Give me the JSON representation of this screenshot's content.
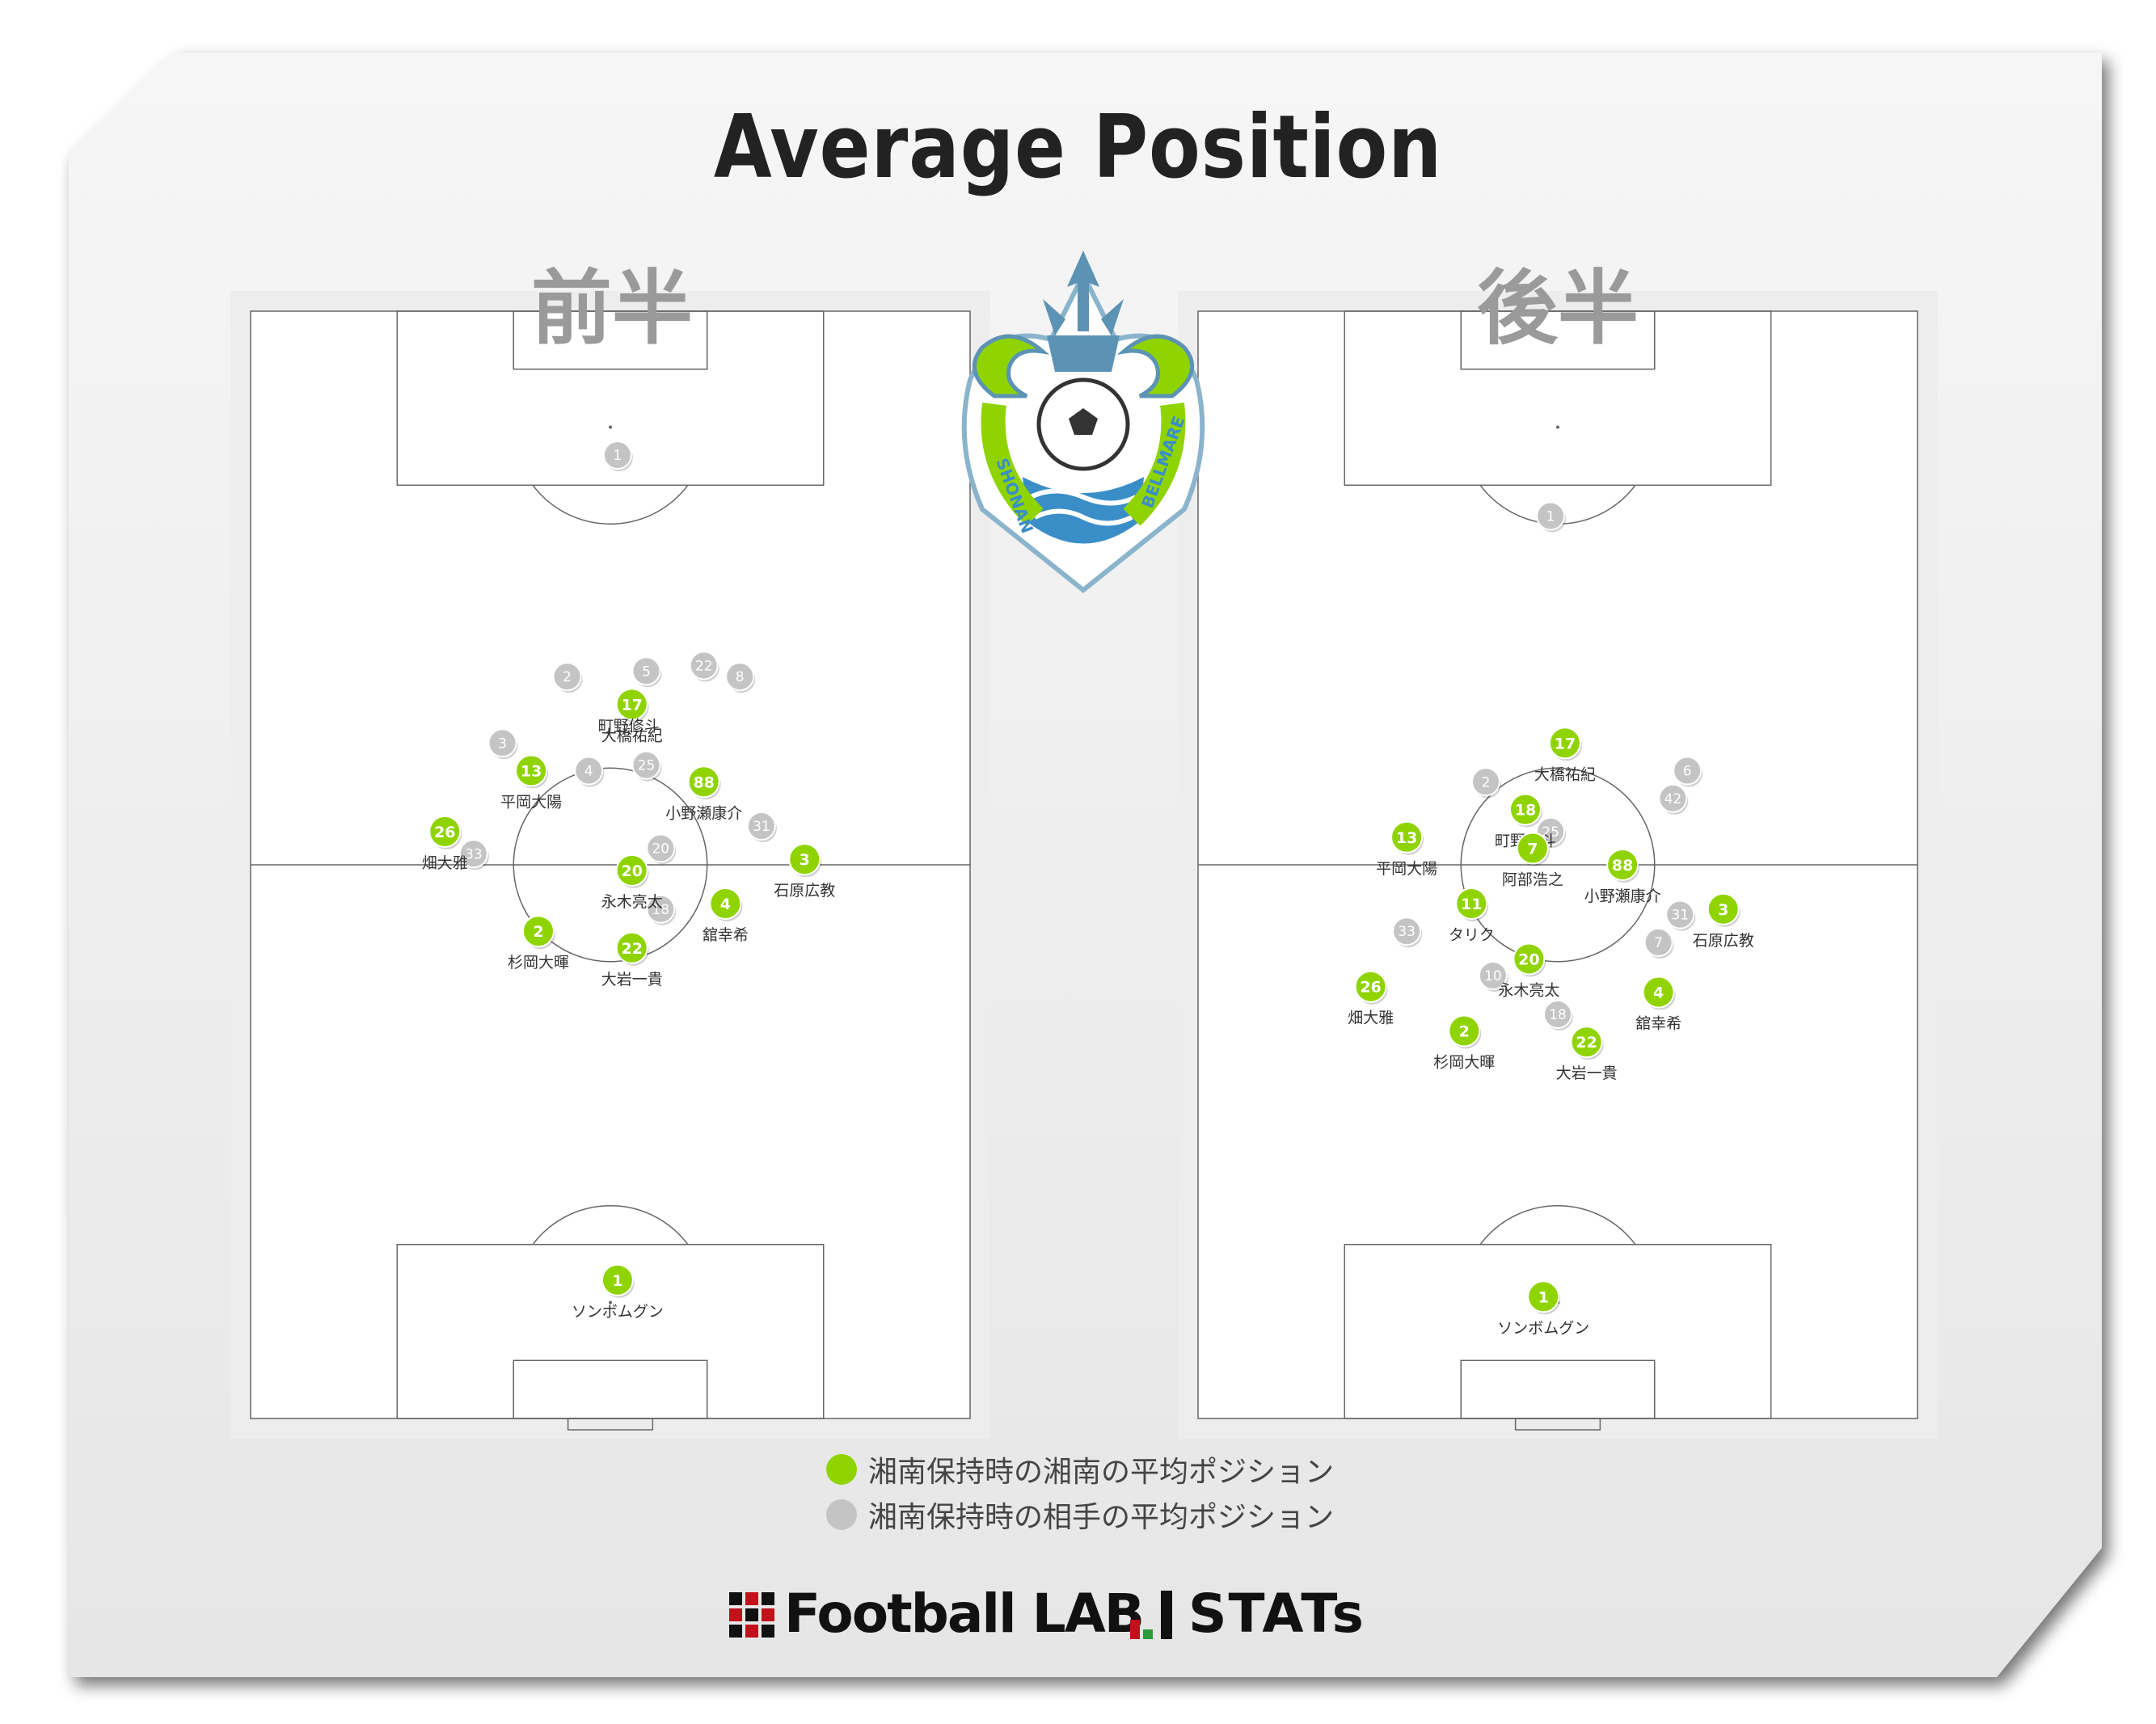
{
  "title": "Average Position",
  "halves": [
    {
      "label": "前半"
    },
    {
      "label": "後半"
    }
  ],
  "crest": {
    "text": "SHONAN BELLMARE"
  },
  "legend": [
    {
      "label": "湘南保持時の湘南の平均ポジション",
      "color": "#8fd400"
    },
    {
      "label": "湘南保持時の相手の平均ポジション",
      "color": "#c4c4c4"
    }
  ],
  "logos": {
    "footballlab": "Football LAB",
    "stats": "STATs"
  },
  "colors": {
    "home": "#8fd400",
    "away": "#c4c4c4",
    "line": "#666666",
    "pitch": "#ffffff"
  },
  "chart_data": [
    {
      "type": "scatter",
      "title": "前半",
      "home": [
        {
          "num": "1",
          "name": "ソンボムグン",
          "x": 51,
          "y": 12.5
        },
        {
          "num": "17",
          "name": "大橋祐紀",
          "x": 53,
          "y": 64.5
        },
        {
          "num": "13",
          "name": "平岡大陽",
          "x": 39,
          "y": 58.5
        },
        {
          "num": "88",
          "name": "小野瀬康介",
          "x": 63,
          "y": 57.5
        },
        {
          "num": "26",
          "name": "畑大雅",
          "x": 27,
          "y": 53
        },
        {
          "num": "20",
          "name": "永木亮太",
          "x": 53,
          "y": 49.5
        },
        {
          "num": "3",
          "name": "石原広教",
          "x": 77,
          "y": 50.5
        },
        {
          "num": "4",
          "name": "舘幸希",
          "x": 66,
          "y": 46.5
        },
        {
          "num": "2",
          "name": "杉岡大暉",
          "x": 40,
          "y": 44
        },
        {
          "num": "22",
          "name": "大岩一貴",
          "x": 53,
          "y": 42.5
        }
      ],
      "home_overlap_label": "町野修斗",
      "away": [
        {
          "num": "1",
          "x": 51,
          "y": 87
        },
        {
          "num": "2",
          "x": 44,
          "y": 67
        },
        {
          "num": "5",
          "x": 55,
          "y": 67.5
        },
        {
          "num": "22",
          "x": 63,
          "y": 68
        },
        {
          "num": "8",
          "x": 68,
          "y": 67
        },
        {
          "num": "3",
          "x": 35,
          "y": 61
        },
        {
          "num": "4",
          "x": 47,
          "y": 58.5
        },
        {
          "num": "25",
          "x": 55,
          "y": 59
        },
        {
          "num": "31",
          "x": 71,
          "y": 53.5
        },
        {
          "num": "20",
          "x": 57,
          "y": 51.5
        },
        {
          "num": "33",
          "x": 31,
          "y": 51
        },
        {
          "num": "18",
          "x": 57,
          "y": 46
        }
      ]
    },
    {
      "type": "scatter",
      "title": "後半",
      "home": [
        {
          "num": "1",
          "name": "ソンボムグン",
          "x": 48,
          "y": 11
        },
        {
          "num": "17",
          "name": "大橋祐紀",
          "x": 51,
          "y": 61
        },
        {
          "num": "18",
          "name": "町野修斗",
          "x": 45.5,
          "y": 55
        },
        {
          "num": "13",
          "name": "平岡大陽",
          "x": 29,
          "y": 52.5
        },
        {
          "num": "7",
          "name": "阿部浩之",
          "x": 46.5,
          "y": 51.5
        },
        {
          "num": "88",
          "name": "小野瀬康介",
          "x": 59,
          "y": 50
        },
        {
          "num": "11",
          "name": "タリク",
          "x": 38,
          "y": 46.5
        },
        {
          "num": "3",
          "name": "石原広教",
          "x": 73,
          "y": 46
        },
        {
          "num": "20",
          "name": "永木亮太",
          "x": 46,
          "y": 41.5
        },
        {
          "num": "26",
          "name": "畑大雅",
          "x": 24,
          "y": 39
        },
        {
          "num": "4",
          "name": "舘幸希",
          "x": 64,
          "y": 38.5
        },
        {
          "num": "2",
          "name": "杉岡大暉",
          "x": 37,
          "y": 35
        },
        {
          "num": "22",
          "name": "大岩一貴",
          "x": 54,
          "y": 34
        }
      ],
      "away": [
        {
          "num": "1",
          "x": 49,
          "y": 81.5
        },
        {
          "num": "2",
          "x": 40,
          "y": 57.5
        },
        {
          "num": "6",
          "x": 68,
          "y": 58.5
        },
        {
          "num": "42",
          "x": 66,
          "y": 56
        },
        {
          "num": "25",
          "x": 49,
          "y": 53
        },
        {
          "num": "31",
          "x": 67,
          "y": 45.5
        },
        {
          "num": "33",
          "x": 29,
          "y": 44
        },
        {
          "num": "7",
          "x": 64,
          "y": 43
        },
        {
          "num": "10",
          "x": 41,
          "y": 40
        },
        {
          "num": "18",
          "x": 50,
          "y": 36.5
        }
      ]
    }
  ]
}
